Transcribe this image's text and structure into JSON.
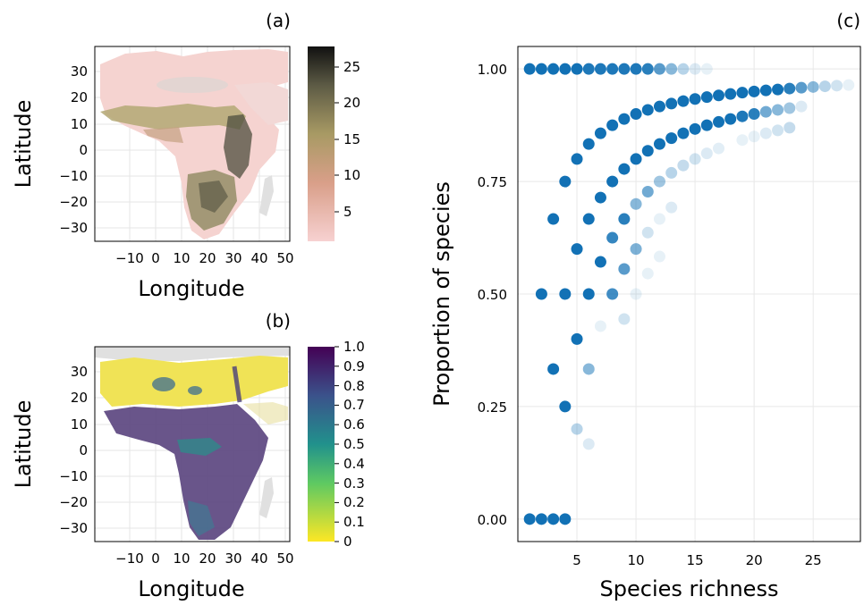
{
  "panels": {
    "a": {
      "tag": "(a)",
      "xlabel": "Longitude",
      "ylabel": "Latitude",
      "xticks": [
        "−10",
        "0",
        "10",
        "20",
        "30",
        "40",
        "50"
      ],
      "yticks": [
        "30",
        "20",
        "10",
        "0",
        "−10",
        "−20",
        "−30"
      ],
      "colorbar_ticks": [
        "25",
        "20",
        "15",
        "10",
        "5"
      ],
      "colorbar_range": [
        1,
        28
      ],
      "colorbar_colors": [
        "#f7d1d1",
        "#d99f89",
        "#a89a64",
        "#5d5b45",
        "#111111"
      ]
    },
    "b": {
      "tag": "(b)",
      "xlabel": "Longitude",
      "ylabel": "Latitude",
      "xticks": [
        "−10",
        "0",
        "10",
        "20",
        "30",
        "40",
        "50"
      ],
      "yticks": [
        "30",
        "20",
        "10",
        "0",
        "−10",
        "−20",
        "−30"
      ],
      "colorbar_ticks": [
        "1.0",
        "0.9",
        "0.8",
        "0.7",
        "0.6",
        "0.5",
        "0.4",
        "0.3",
        "0.2",
        "0.1",
        "0"
      ],
      "colorbar_range": [
        0,
        1
      ],
      "colorbar_colors": [
        "#fde725",
        "#5ec962",
        "#21918c",
        "#3b528b",
        "#440154"
      ]
    },
    "c": {
      "tag": "(c)"
    }
  },
  "chart_data": [
    {
      "panel": "a",
      "type": "heatmap",
      "xlabel": "Longitude",
      "ylabel": "Latitude",
      "xlim": [
        -20,
        55
      ],
      "ylim": [
        -35,
        40
      ],
      "colorbar_range": [
        1,
        28
      ]
    },
    {
      "panel": "b",
      "type": "heatmap",
      "xlabel": "Longitude",
      "ylabel": "Latitude",
      "xlim": [
        -20,
        55
      ],
      "ylim": [
        -35,
        40
      ],
      "colorbar_range": [
        0,
        1
      ]
    },
    {
      "panel": "c",
      "type": "scatter",
      "xlabel": "Species richness",
      "ylabel": "Proportion of species",
      "xlim": [
        0,
        29
      ],
      "ylim": [
        -0.05,
        1.05
      ],
      "xticks": [
        "5",
        "10",
        "15",
        "20",
        "25"
      ],
      "yticks": [
        "0.00",
        "0.25",
        "0.50",
        "0.75",
        "1.00"
      ],
      "grid": true,
      "color": "#1271b5",
      "points": [
        {
          "x": 1,
          "y": 1.0,
          "a": 1.0
        },
        {
          "x": 2,
          "y": 1.0,
          "a": 1.0
        },
        {
          "x": 3,
          "y": 1.0,
          "a": 1.0
        },
        {
          "x": 4,
          "y": 1.0,
          "a": 1.0
        },
        {
          "x": 5,
          "y": 1.0,
          "a": 1.0
        },
        {
          "x": 6,
          "y": 1.0,
          "a": 0.95
        },
        {
          "x": 7,
          "y": 1.0,
          "a": 0.95
        },
        {
          "x": 8,
          "y": 1.0,
          "a": 0.95
        },
        {
          "x": 9,
          "y": 1.0,
          "a": 0.95
        },
        {
          "x": 10,
          "y": 1.0,
          "a": 0.95
        },
        {
          "x": 11,
          "y": 1.0,
          "a": 0.9
        },
        {
          "x": 12,
          "y": 1.0,
          "a": 0.7
        },
        {
          "x": 13,
          "y": 1.0,
          "a": 0.5
        },
        {
          "x": 14,
          "y": 1.0,
          "a": 0.3
        },
        {
          "x": 15,
          "y": 1.0,
          "a": 0.15
        },
        {
          "x": 16,
          "y": 1.0,
          "a": 0.1
        },
        {
          "x": 1,
          "y": 0.0,
          "a": 1.0
        },
        {
          "x": 2,
          "y": 0.0,
          "a": 1.0
        },
        {
          "x": 3,
          "y": 0.0,
          "a": 1.0
        },
        {
          "x": 4,
          "y": 0.0,
          "a": 1.0
        },
        {
          "x": 2,
          "y": 0.5,
          "a": 1.0
        },
        {
          "x": 3,
          "y": 0.6667,
          "a": 1.0
        },
        {
          "x": 3,
          "y": 0.3333,
          "a": 1.0
        },
        {
          "x": 4,
          "y": 0.75,
          "a": 1.0
        },
        {
          "x": 4,
          "y": 0.5,
          "a": 1.0
        },
        {
          "x": 4,
          "y": 0.25,
          "a": 1.0
        },
        {
          "x": 5,
          "y": 0.8,
          "a": 1.0
        },
        {
          "x": 5,
          "y": 0.6,
          "a": 1.0
        },
        {
          "x": 5,
          "y": 0.4,
          "a": 1.0
        },
        {
          "x": 5,
          "y": 0.2,
          "a": 0.3
        },
        {
          "x": 6,
          "y": 0.8333,
          "a": 1.0
        },
        {
          "x": 6,
          "y": 0.6667,
          "a": 1.0
        },
        {
          "x": 6,
          "y": 0.5,
          "a": 1.0
        },
        {
          "x": 6,
          "y": 0.3333,
          "a": 0.5
        },
        {
          "x": 6,
          "y": 0.1667,
          "a": 0.15
        },
        {
          "x": 7,
          "y": 0.8571,
          "a": 1.0
        },
        {
          "x": 7,
          "y": 0.7143,
          "a": 1.0
        },
        {
          "x": 7,
          "y": 0.5714,
          "a": 1.0
        },
        {
          "x": 7,
          "y": 0.4286,
          "a": 0.1
        },
        {
          "x": 8,
          "y": 0.875,
          "a": 1.0
        },
        {
          "x": 8,
          "y": 0.75,
          "a": 1.0
        },
        {
          "x": 8,
          "y": 0.625,
          "a": 0.85
        },
        {
          "x": 8,
          "y": 0.5,
          "a": 0.8
        },
        {
          "x": 9,
          "y": 0.8889,
          "a": 1.0
        },
        {
          "x": 9,
          "y": 0.7778,
          "a": 1.0
        },
        {
          "x": 9,
          "y": 0.6667,
          "a": 0.9
        },
        {
          "x": 9,
          "y": 0.5556,
          "a": 0.7
        },
        {
          "x": 9,
          "y": 0.4444,
          "a": 0.2
        },
        {
          "x": 10,
          "y": 0.9,
          "a": 1.0
        },
        {
          "x": 10,
          "y": 0.8,
          "a": 1.0
        },
        {
          "x": 10,
          "y": 0.7,
          "a": 0.5
        },
        {
          "x": 10,
          "y": 0.6,
          "a": 0.55
        },
        {
          "x": 10,
          "y": 0.5,
          "a": 0.1
        },
        {
          "x": 11,
          "y": 0.9091,
          "a": 1.0
        },
        {
          "x": 11,
          "y": 0.8182,
          "a": 1.0
        },
        {
          "x": 11,
          "y": 0.7273,
          "a": 0.6
        },
        {
          "x": 11,
          "y": 0.6364,
          "a": 0.2
        },
        {
          "x": 11,
          "y": 0.5455,
          "a": 0.1
        },
        {
          "x": 12,
          "y": 0.9167,
          "a": 1.0
        },
        {
          "x": 12,
          "y": 0.8333,
          "a": 1.0
        },
        {
          "x": 12,
          "y": 0.75,
          "a": 0.4
        },
        {
          "x": 12,
          "y": 0.6667,
          "a": 0.1
        },
        {
          "x": 12,
          "y": 0.5833,
          "a": 0.1
        },
        {
          "x": 13,
          "y": 0.9231,
          "a": 1.0
        },
        {
          "x": 13,
          "y": 0.8462,
          "a": 1.0
        },
        {
          "x": 13,
          "y": 0.7692,
          "a": 0.3
        },
        {
          "x": 13,
          "y": 0.6923,
          "a": 0.15
        },
        {
          "x": 14,
          "y": 0.9286,
          "a": 1.0
        },
        {
          "x": 14,
          "y": 0.8571,
          "a": 1.0
        },
        {
          "x": 14,
          "y": 0.7857,
          "a": 0.25
        },
        {
          "x": 15,
          "y": 0.9333,
          "a": 1.0
        },
        {
          "x": 15,
          "y": 0.8667,
          "a": 1.0
        },
        {
          "x": 15,
          "y": 0.8,
          "a": 0.2
        },
        {
          "x": 16,
          "y": 0.9375,
          "a": 1.0
        },
        {
          "x": 16,
          "y": 0.875,
          "a": 1.0
        },
        {
          "x": 16,
          "y": 0.8125,
          "a": 0.15
        },
        {
          "x": 17,
          "y": 0.9412,
          "a": 1.0
        },
        {
          "x": 17,
          "y": 0.8824,
          "a": 1.0
        },
        {
          "x": 17,
          "y": 0.8235,
          "a": 0.12
        },
        {
          "x": 18,
          "y": 0.9444,
          "a": 1.0
        },
        {
          "x": 18,
          "y": 0.8889,
          "a": 1.0
        },
        {
          "x": 19,
          "y": 0.9474,
          "a": 1.0
        },
        {
          "x": 19,
          "y": 0.8947,
          "a": 0.95
        },
        {
          "x": 19,
          "y": 0.8421,
          "a": 0.1
        },
        {
          "x": 20,
          "y": 0.95,
          "a": 1.0
        },
        {
          "x": 20,
          "y": 0.9,
          "a": 0.9
        },
        {
          "x": 20,
          "y": 0.85,
          "a": 0.1
        },
        {
          "x": 21,
          "y": 0.9524,
          "a": 1.0
        },
        {
          "x": 21,
          "y": 0.9048,
          "a": 0.6
        },
        {
          "x": 21,
          "y": 0.8571,
          "a": 0.15
        },
        {
          "x": 22,
          "y": 0.9545,
          "a": 1.0
        },
        {
          "x": 22,
          "y": 0.9091,
          "a": 0.5
        },
        {
          "x": 22,
          "y": 0.8636,
          "a": 0.2
        },
        {
          "x": 23,
          "y": 0.9565,
          "a": 0.9
        },
        {
          "x": 23,
          "y": 0.913,
          "a": 0.4
        },
        {
          "x": 23,
          "y": 0.8696,
          "a": 0.25
        },
        {
          "x": 24,
          "y": 0.9583,
          "a": 0.7
        },
        {
          "x": 24,
          "y": 0.9167,
          "a": 0.15
        },
        {
          "x": 25,
          "y": 0.96,
          "a": 0.5
        },
        {
          "x": 26,
          "y": 0.9615,
          "a": 0.3
        },
        {
          "x": 27,
          "y": 0.963,
          "a": 0.2
        },
        {
          "x": 28,
          "y": 0.9643,
          "a": 0.1
        }
      ]
    }
  ]
}
